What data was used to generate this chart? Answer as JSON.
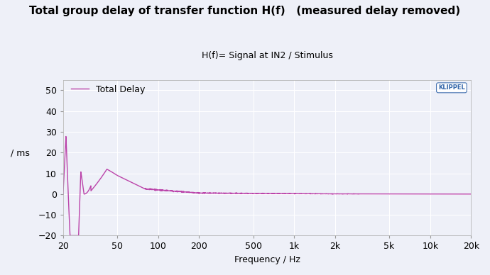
{
  "title": "Total group delay of transfer function H(f)   (measured delay removed)",
  "subtitle": "H(f)= Signal at IN2 / Stimulus",
  "xlabel": "Frequency / Hz",
  "ylabel": "/ ms",
  "legend_label": "Total Delay",
  "line_color": "#bb44aa",
  "background_color": "#eef0f8",
  "plot_bg_color": "#eef0f8",
  "grid_color": "#ffffff",
  "ylim": [
    -20,
    55
  ],
  "yticks": [
    -20,
    -10,
    0,
    10,
    20,
    30,
    40,
    50
  ],
  "xtick_labels": [
    "20",
    "50",
    "100",
    "200",
    "500",
    "1k",
    "2k",
    "5k",
    "10k",
    "20k"
  ],
  "xtick_values": [
    20,
    50,
    100,
    200,
    500,
    1000,
    2000,
    5000,
    10000,
    20000
  ],
  "klippel_text": "KLIPPEL",
  "klippel_color": "#3366aa",
  "title_fontsize": 11,
  "subtitle_fontsize": 9,
  "tick_fontsize": 9,
  "label_fontsize": 9
}
